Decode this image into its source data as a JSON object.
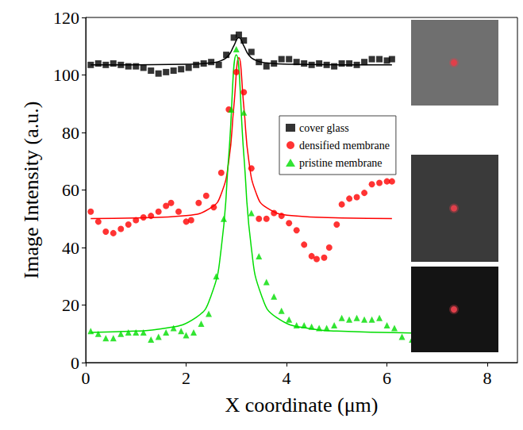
{
  "chart_data": {
    "type": "scatter",
    "xlabel": "X coordinate (μm)",
    "ylabel": "Image Intensity (a.u.)",
    "xlim": [
      0,
      8.6
    ],
    "xticks": [
      0,
      2,
      4,
      6,
      8
    ],
    "ylim": [
      0,
      120
    ],
    "yticks": [
      0,
      20,
      40,
      60,
      80,
      100,
      120
    ],
    "grid": false,
    "legend": "right",
    "series": [
      {
        "name": "cover glass",
        "color": "#000000",
        "marker": "square",
        "x": [
          0.1,
          0.25,
          0.4,
          0.55,
          0.7,
          0.85,
          1.0,
          1.15,
          1.3,
          1.45,
          1.6,
          1.75,
          1.9,
          2.05,
          2.2,
          2.35,
          2.5,
          2.65,
          2.8,
          2.95,
          3.05,
          3.15,
          3.3,
          3.45,
          3.6,
          3.75,
          3.9,
          4.05,
          4.2,
          4.35,
          4.5,
          4.65,
          4.8,
          4.95,
          5.1,
          5.25,
          5.4,
          5.55,
          5.7,
          5.85,
          6.0,
          6.1
        ],
        "values": [
          103.5,
          104,
          103.5,
          104,
          103.5,
          103,
          103,
          102.5,
          101.5,
          100.5,
          101,
          101.5,
          102,
          102.5,
          103.5,
          104,
          104.5,
          103.5,
          107,
          113,
          114,
          112,
          108,
          104.5,
          103,
          104,
          105.5,
          105.5,
          104.5,
          104,
          103.5,
          104,
          103.5,
          103,
          104,
          104,
          103.5,
          104.5,
          105.5,
          105.5,
          105,
          105.5
        ],
        "fit_x": [
          0.1,
          1.0,
          2.0,
          2.5,
          2.7,
          2.85,
          2.95,
          3.05,
          3.15,
          3.25,
          3.4,
          3.6,
          4.1,
          5.1,
          6.1
        ],
        "fit_values": [
          103.5,
          103.55,
          103.7,
          104.2,
          105.0,
          106.9,
          110.1,
          113,
          110.1,
          106.9,
          105.0,
          104.2,
          103.7,
          103.55,
          103.5
        ]
      },
      {
        "name": "densified membrane",
        "color": "#ff0000",
        "marker": "circle",
        "x": [
          0.1,
          0.25,
          0.4,
          0.55,
          0.7,
          0.85,
          1.0,
          1.15,
          1.3,
          1.45,
          1.6,
          1.7,
          1.85,
          2.0,
          2.1,
          2.25,
          2.4,
          2.55,
          2.7,
          2.85,
          3.0,
          3.15,
          3.3,
          3.45,
          3.6,
          3.75,
          3.9,
          4.05,
          4.2,
          4.35,
          4.5,
          4.6,
          4.75,
          4.85,
          5.0,
          5.1,
          5.25,
          5.4,
          5.55,
          5.7,
          5.85,
          6.0,
          6.1
        ],
        "values": [
          52.5,
          49,
          45.5,
          45,
          46.5,
          48,
          49.5,
          50.5,
          51,
          52.5,
          54.5,
          55.5,
          52.5,
          49,
          49.5,
          55.5,
          58,
          54,
          66,
          88,
          101,
          94,
          67.5,
          50,
          50,
          52,
          51,
          48.5,
          46,
          41,
          37,
          36,
          36.5,
          40,
          48,
          55,
          57,
          57.5,
          59,
          62,
          62.5,
          63,
          63
        ],
        "fit_x": [
          0.1,
          1.0,
          2.0,
          2.5,
          2.7,
          2.85,
          2.95,
          3.05,
          3.15,
          3.25,
          3.4,
          3.6,
          4.1,
          5.1,
          6.1
        ],
        "fit_values": [
          50.1,
          50.3,
          51.1,
          53.9,
          58.7,
          70.1,
          88.9,
          106,
          88.9,
          70.1,
          58.7,
          53.9,
          51.1,
          50.3,
          50.1
        ]
      },
      {
        "name": "pristine membrane",
        "color": "#00dd00",
        "marker": "triangle",
        "x": [
          0.1,
          0.25,
          0.4,
          0.55,
          0.7,
          0.85,
          1.0,
          1.15,
          1.3,
          1.45,
          1.6,
          1.75,
          1.9,
          2.0,
          2.15,
          2.3,
          2.45,
          2.6,
          2.75,
          2.9,
          3.0,
          3.15,
          3.3,
          3.45,
          3.6,
          3.75,
          3.9,
          4.05,
          4.2,
          4.35,
          4.5,
          4.65,
          4.8,
          4.95,
          5.1,
          5.25,
          5.4,
          5.55,
          5.7,
          5.85,
          6.0,
          6.15,
          6.3,
          6.5
        ],
        "values": [
          11,
          10,
          8.5,
          8.5,
          10,
          10.5,
          10.5,
          10.5,
          8,
          9,
          10.5,
          12,
          11,
          9.5,
          10.5,
          13.5,
          17,
          30,
          50,
          88,
          109,
          87,
          52,
          37,
          28,
          23,
          18,
          15,
          13,
          13,
          12.5,
          12,
          12,
          13,
          15.5,
          15,
          15.5,
          15,
          15,
          15.5,
          13,
          12,
          9,
          8
        ],
        "fit_x": [
          0.1,
          1.0,
          1.5,
          2.2,
          2.5,
          2.7,
          2.85,
          3.0,
          3.15,
          3.3,
          3.5,
          3.8,
          4.5,
          5.0,
          6.5
        ],
        "fit_values": [
          10.5,
          10.96,
          11.7,
          15.7,
          23.4,
          39.8,
          72.1,
          107,
          72.1,
          39.8,
          23.4,
          15.7,
          11.7,
          10.96,
          10.3
        ]
      }
    ]
  }
}
